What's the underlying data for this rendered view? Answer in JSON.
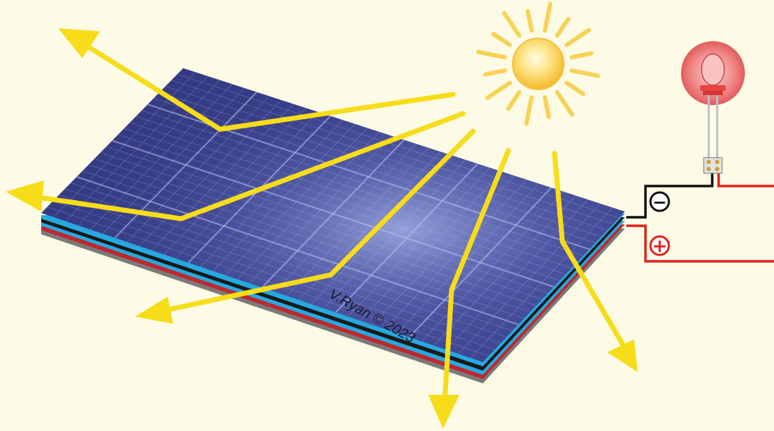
{
  "diagram": {
    "credit": "V.Ryan © 2023",
    "terminals": {
      "negative_symbol": "−",
      "positive_symbol": "+"
    },
    "icons": [
      "sun-icon",
      "led-bulb-icon",
      "solar-panel"
    ],
    "colors": {
      "background": "#fdfbe6",
      "sun_rays": "#f7d255",
      "light_arrows": "#f7dc1a",
      "panel_base": "#3b428c",
      "panel_highlight": "#8d97d6",
      "layer_cyan": "#26a9e0",
      "layer_black": "#1a1a1a",
      "layer_red": "#c0272d",
      "wire_negative": "#111111",
      "wire_positive": "#e0231b",
      "led_glow": "#ef5a5a"
    }
  }
}
